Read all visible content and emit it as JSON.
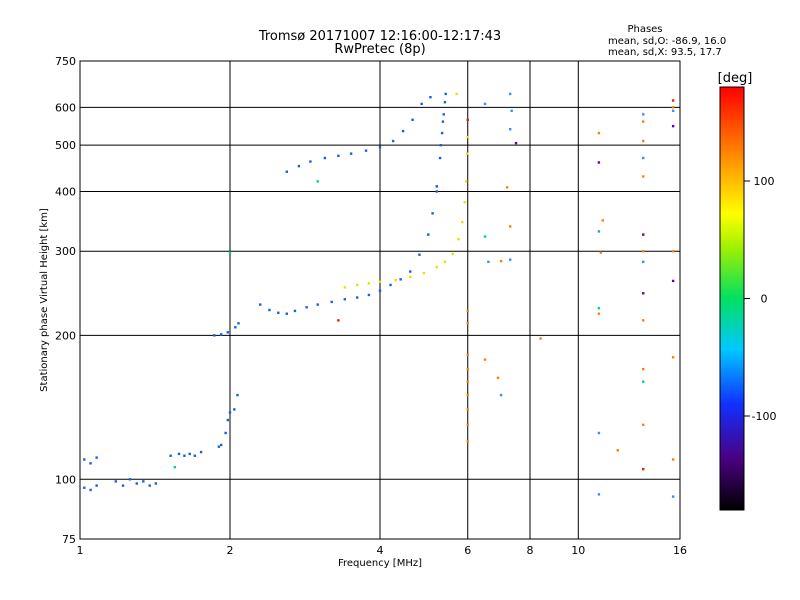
{
  "chart_data": {
    "type": "scatter",
    "title": "Tromsø 20171007 12:16:00-12:17:43",
    "subtitle": "RwPretec (8p)",
    "xlabel": "Frequency [MHz]",
    "ylabel": "Stationary phase Virtual Height [km]",
    "x_scale": "log",
    "y_scale": "log",
    "xlim": [
      1,
      16
    ],
    "ylim": [
      75,
      750
    ],
    "x_ticks": [
      1,
      2,
      4,
      6,
      8,
      10,
      16
    ],
    "x_tick_labels": [
      "1",
      "2",
      "4",
      "6",
      "8",
      "10",
      "16"
    ],
    "y_ticks": [
      75,
      100,
      200,
      300,
      400,
      500,
      600,
      750
    ],
    "y_tick_labels": [
      "75",
      "100",
      "200",
      "300",
      "400",
      "500",
      "600",
      "750"
    ],
    "grid": true,
    "phases_info": {
      "heading": "Phases",
      "line1": "mean, sd,O: -86.9, 16.0",
      "line2": "mean, sd,X:  93.5, 17.7"
    },
    "colorbar": {
      "label": "[deg]",
      "range": [
        -180,
        180
      ],
      "ticks": [
        100,
        0,
        -100
      ],
      "tick_labels": [
        "100",
        "0",
        "-100"
      ]
    },
    "series": [
      {
        "color": "#1560e0",
        "points": [
          [
            1.02,
            110
          ],
          [
            1.05,
            108
          ],
          [
            1.08,
            111
          ],
          [
            1.02,
            96
          ],
          [
            1.05,
            95
          ],
          [
            1.08,
            97
          ],
          [
            1.18,
            99
          ],
          [
            1.22,
            97
          ],
          [
            1.26,
            100
          ],
          [
            1.3,
            98
          ],
          [
            1.34,
            99
          ],
          [
            1.38,
            97
          ],
          [
            1.42,
            98
          ],
          [
            1.52,
            112
          ],
          [
            1.58,
            113
          ],
          [
            1.62,
            112
          ],
          [
            1.66,
            113
          ],
          [
            1.7,
            112
          ],
          [
            1.75,
            114
          ],
          [
            1.9,
            117
          ],
          [
            1.92,
            118
          ],
          [
            1.96,
            125
          ],
          [
            1.98,
            133
          ],
          [
            2.0,
            138
          ],
          [
            2.04,
            140
          ],
          [
            2.07,
            150
          ],
          [
            1.86,
            200
          ],
          [
            1.92,
            201
          ],
          [
            1.98,
            203
          ],
          [
            2.05,
            208
          ],
          [
            2.08,
            212
          ],
          [
            2.3,
            232
          ],
          [
            2.4,
            226
          ],
          [
            2.5,
            223
          ],
          [
            2.6,
            222
          ],
          [
            2.7,
            225
          ],
          [
            2.85,
            229
          ],
          [
            3.0,
            232
          ],
          [
            3.2,
            235
          ],
          [
            3.4,
            238
          ],
          [
            3.6,
            240
          ],
          [
            3.8,
            243
          ],
          [
            4.0,
            248
          ],
          [
            4.2,
            255
          ],
          [
            4.4,
            262
          ],
          [
            4.6,
            272
          ],
          [
            4.8,
            295
          ],
          [
            5.0,
            325
          ],
          [
            5.1,
            360
          ],
          [
            5.2,
            410
          ],
          [
            5.28,
            470
          ],
          [
            5.33,
            530
          ],
          [
            5.37,
            580
          ],
          [
            5.4,
            615
          ],
          [
            5.42,
            640
          ],
          [
            2.6,
            440
          ],
          [
            2.75,
            452
          ],
          [
            2.9,
            462
          ],
          [
            3.1,
            470
          ],
          [
            3.3,
            475
          ],
          [
            3.5,
            480
          ],
          [
            3.75,
            487
          ],
          [
            4.0,
            495
          ],
          [
            4.25,
            510
          ],
          [
            4.45,
            535
          ],
          [
            4.65,
            565
          ],
          [
            4.85,
            610
          ],
          [
            5.05,
            630
          ],
          [
            5.2,
            400
          ],
          [
            5.3,
            500
          ],
          [
            5.35,
            560
          ]
        ]
      },
      {
        "color": "#e8e000",
        "points": [
          [
            3.4,
            252
          ],
          [
            3.6,
            255
          ],
          [
            3.8,
            257
          ],
          [
            4.0,
            259
          ],
          [
            4.3,
            261
          ],
          [
            4.6,
            265
          ],
          [
            4.9,
            270
          ],
          [
            5.2,
            278
          ],
          [
            5.4,
            285
          ],
          [
            5.6,
            296
          ],
          [
            5.75,
            318
          ],
          [
            5.85,
            345
          ],
          [
            5.92,
            380
          ],
          [
            5.96,
            420
          ],
          [
            5.99,
            480
          ],
          [
            6.0,
            520
          ],
          [
            5.7,
            640
          ]
        ]
      },
      {
        "color": "#ff8000",
        "points": [
          [
            6.0,
            182
          ],
          [
            6.0,
            170
          ],
          [
            6.0,
            160
          ],
          [
            6.0,
            150
          ],
          [
            6.0,
            140
          ],
          [
            6.0,
            130
          ],
          [
            6.0,
            120
          ],
          [
            6.0,
            225
          ],
          [
            6.0,
            212
          ],
          [
            6.5,
            178
          ],
          [
            6.9,
            163
          ],
          [
            7.2,
            408
          ],
          [
            7.3,
            338
          ],
          [
            7.0,
            286
          ],
          [
            11.0,
            530
          ],
          [
            11.1,
            298
          ],
          [
            11.0,
            222
          ],
          [
            11.2,
            348
          ],
          [
            13.5,
            560
          ],
          [
            13.5,
            510
          ],
          [
            13.5,
            430
          ],
          [
            13.5,
            300
          ],
          [
            13.5,
            215
          ],
          [
            13.5,
            170
          ],
          [
            13.5,
            130
          ],
          [
            15.5,
            600
          ],
          [
            15.5,
            300
          ],
          [
            15.5,
            180
          ],
          [
            15.5,
            110
          ],
          [
            8.4,
            197
          ],
          [
            12.0,
            115
          ]
        ]
      },
      {
        "color": "#3090ff",
        "points": [
          [
            7.0,
            150
          ],
          [
            7.3,
            640
          ],
          [
            7.35,
            590
          ],
          [
            7.3,
            540
          ],
          [
            6.5,
            610
          ],
          [
            6.6,
            285
          ],
          [
            11.0,
            330
          ],
          [
            11.0,
            125
          ],
          [
            11.0,
            93
          ],
          [
            13.5,
            580
          ],
          [
            13.5,
            470
          ],
          [
            13.5,
            285
          ],
          [
            15.5,
            590
          ],
          [
            15.5,
            92
          ],
          [
            7.3,
            288
          ]
        ]
      },
      {
        "color": "#00d0a0",
        "points": [
          [
            2.0,
            298
          ],
          [
            3.0,
            420
          ],
          [
            6.5,
            322
          ],
          [
            11.0,
            228
          ],
          [
            13.5,
            160
          ],
          [
            1.55,
            106
          ]
        ]
      },
      {
        "color": "#5a00c0",
        "points": [
          [
            13.5,
            245
          ],
          [
            13.5,
            325
          ],
          [
            15.5,
            548
          ],
          [
            15.5,
            260
          ],
          [
            11.0,
            460
          ],
          [
            7.5,
            505
          ]
        ]
      },
      {
        "color": "#e02000",
        "points": [
          [
            3.3,
            215
          ],
          [
            13.5,
            105
          ],
          [
            15.5,
            620
          ],
          [
            6.0,
            565
          ]
        ]
      }
    ]
  }
}
